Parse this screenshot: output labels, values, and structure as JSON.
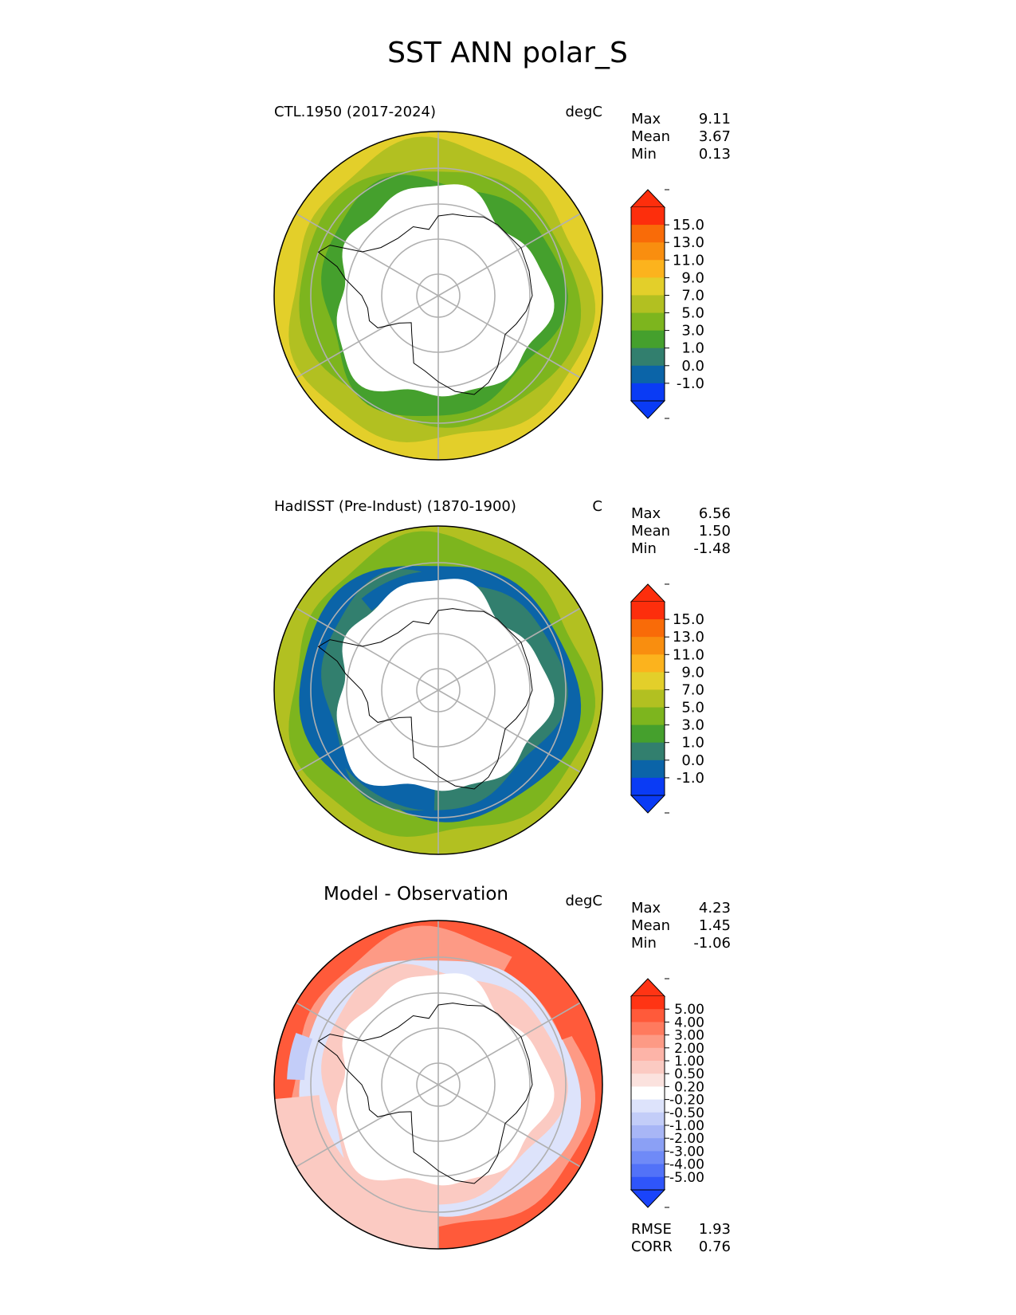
{
  "figure": {
    "title": "SST ANN polar_S"
  },
  "chart_data": [
    {
      "type": "polar-contour-map",
      "projection": "south-polar-stereographic",
      "title": "CTL.1950 (2017-2024)",
      "title_style": "small-left",
      "units": "degC",
      "stats": {
        "labels": [
          "Max",
          "Mean",
          "Min"
        ],
        "values": [
          "9.11",
          "3.67",
          "0.13"
        ]
      },
      "colorbar": {
        "labels": [
          "15.0",
          "13.0",
          "11.0",
          "9.0",
          "7.0",
          "5.0",
          "3.0",
          "1.0",
          "0.0",
          "-1.0"
        ],
        "colors": [
          "#fd2e0c",
          "#f96b08",
          "#f98e0f",
          "#fcb31d",
          "#e3cf2a",
          "#b2c021",
          "#7db51e",
          "#45a02d",
          "#327f6e",
          "#0b64a8",
          "#0a3bf5"
        ],
        "extend_top": "#fd2e0c",
        "extend_bottom": "#0a3bf5"
      },
      "regions": {
        "sea_ice": "white",
        "outer_ring": [
          "#b2c021",
          "#e3cf2a"
        ],
        "inner_ring": [
          "#45a02d",
          "#7db51e"
        ]
      }
    },
    {
      "type": "polar-contour-map",
      "projection": "south-polar-stereographic",
      "title": "HadISST (Pre-Indust) (1870-1900)",
      "title_style": "small-left",
      "units": "C",
      "stats": {
        "labels": [
          "Max",
          "Mean",
          "Min"
        ],
        "values": [
          "6.56",
          "1.50",
          "-1.48"
        ]
      },
      "colorbar": {
        "labels": [
          "15.0",
          "13.0",
          "11.0",
          "9.0",
          "7.0",
          "5.0",
          "3.0",
          "1.0",
          "0.0",
          "-1.0"
        ],
        "colors": [
          "#fd2e0c",
          "#f96b08",
          "#f98e0f",
          "#fcb31d",
          "#e3cf2a",
          "#b2c021",
          "#7db51e",
          "#45a02d",
          "#327f6e",
          "#0b64a8",
          "#0a3bf5"
        ],
        "extend_top": "#fd2e0c",
        "extend_bottom": "#0a3bf5"
      },
      "regions": {
        "sea_ice": "white",
        "outer_ring": [
          "#7db51e",
          "#b2c021"
        ],
        "inner_ring": [
          "#327f6e",
          "#0b64a8"
        ]
      }
    },
    {
      "type": "polar-contour-map",
      "projection": "south-polar-stereographic",
      "title": "Model - Observation",
      "title_style": "large-center",
      "units": "degC",
      "stats": {
        "labels": [
          "Max",
          "Mean",
          "Min"
        ],
        "values": [
          "4.23",
          "1.45",
          "-1.06"
        ]
      },
      "colorbar": {
        "labels": [
          "5.00",
          "4.00",
          "3.00",
          "2.00",
          "1.00",
          "0.50",
          "0.20",
          "-0.20",
          "-0.50",
          "-1.00",
          "-2.00",
          "-3.00",
          "-4.00",
          "-5.00"
        ],
        "colors": [
          "#ff3414",
          "#ff5a3a",
          "#ff7a5e",
          "#fd9a85",
          "#fdb4a8",
          "#fbcac2",
          "#fbe2de",
          "#ffffff",
          "#dde3fb",
          "#c3cdf8",
          "#a8b6f6",
          "#8ba0f5",
          "#6f8af7",
          "#5272f8",
          "#2f55fa"
        ],
        "extend_top": "#ff3414",
        "extend_bottom": "#1a44fa"
      },
      "regions": {
        "sea_ice": "white",
        "outer_ring": [
          "#fd9a85",
          "#ff5a3a"
        ],
        "inner_ring": [
          "#fbcac2",
          "#dde3fb"
        ]
      },
      "skill": {
        "labels": [
          "RMSE",
          "CORR"
        ],
        "values": [
          "1.93",
          "0.76"
        ]
      }
    }
  ]
}
